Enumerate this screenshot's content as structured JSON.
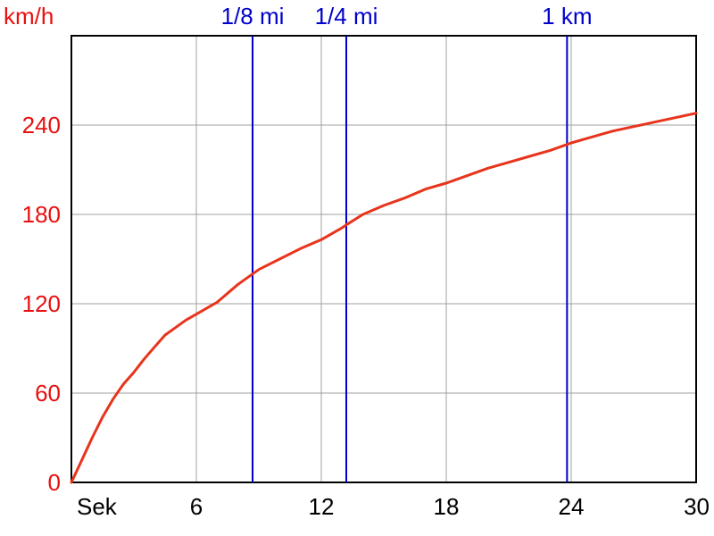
{
  "chart_data": {
    "type": "line",
    "title": "",
    "xlabel": "Sek",
    "ylabel": "km/h",
    "xlim": [
      0,
      30
    ],
    "ylim": [
      0,
      300
    ],
    "x_ticks": [
      6,
      12,
      18,
      24,
      30
    ],
    "y_ticks": [
      0,
      60,
      120,
      180,
      240
    ],
    "grid": true,
    "markers": [
      {
        "label": "1/8 mi",
        "x": 8.7
      },
      {
        "label": "1/4 mi",
        "x": 13.2
      },
      {
        "label": "1 km",
        "x": 23.8
      }
    ],
    "series": [
      {
        "x": [
          0,
          0.5,
          1,
          1.5,
          2,
          2.5,
          3,
          3.5,
          4,
          4.5,
          5,
          5.5,
          6,
          7,
          8,
          8.7,
          9,
          10,
          11,
          12,
          13,
          13.2,
          14,
          15,
          16,
          17,
          18,
          19,
          20,
          21,
          22,
          23,
          23.8,
          24,
          25,
          26,
          27,
          28,
          29,
          30
        ],
        "y": [
          0,
          15,
          30,
          44,
          56,
          66,
          74,
          83,
          91,
          99,
          104,
          109,
          113,
          121,
          133,
          140,
          143,
          150,
          157,
          163,
          171,
          173,
          180,
          186,
          191,
          197,
          201,
          206,
          211,
          215,
          219,
          223,
          227,
          228,
          232,
          236,
          239,
          242,
          245,
          248
        ]
      }
    ],
    "colors": {
      "series": "#e8341c",
      "markers": "#0000cc",
      "y_labels": "#e81010",
      "x_labels": "#000000",
      "grid": "#a0a0a0"
    }
  }
}
